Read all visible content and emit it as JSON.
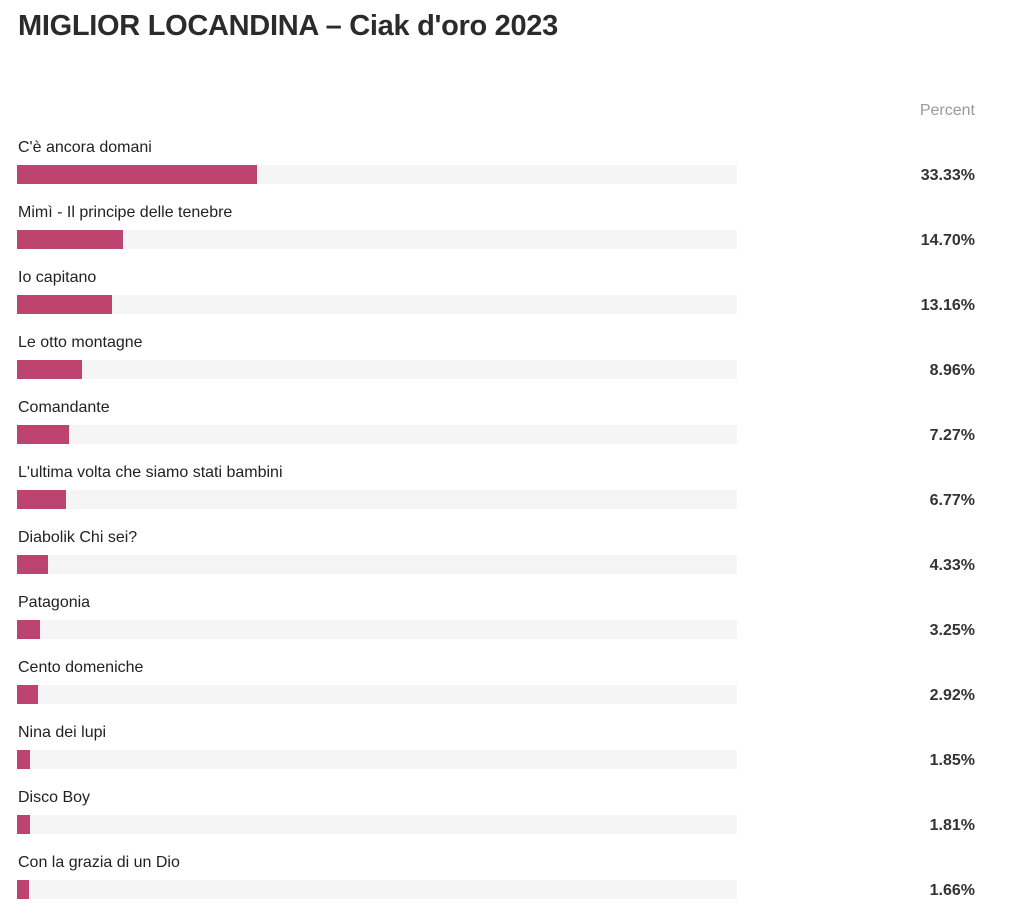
{
  "title": "MIGLIOR LOCANDINA – Ciak d'oro 2023",
  "column_header": "Percent",
  "colors": {
    "bar": "#be4470",
    "track": "#f5f5f5"
  },
  "chart_data": {
    "type": "bar",
    "orientation": "horizontal",
    "title": "MIGLIOR LOCANDINA – Ciak d'oro 2023",
    "xlabel": "",
    "ylabel": "",
    "value_column_label": "Percent",
    "xlim": [
      0,
      100
    ],
    "grid": false,
    "categories": [
      "C'è ancora domani",
      "Mimì - Il principe delle tenebre",
      "Io capitano",
      "Le otto montagne",
      "Comandante",
      "L'ultima volta che siamo stati bambini",
      "Diabolik Chi sei?",
      "Patagonia",
      "Cento domeniche",
      "Nina dei lupi",
      "Disco Boy",
      "Con la grazia di un Dio"
    ],
    "values": [
      33.33,
      14.7,
      13.16,
      8.96,
      7.27,
      6.77,
      4.33,
      3.25,
      2.92,
      1.85,
      1.81,
      1.66
    ],
    "value_labels": [
      "33.33%",
      "14.70%",
      "13.16%",
      "8.96%",
      "7.27%",
      "6.77%",
      "4.33%",
      "3.25%",
      "2.92%",
      "1.85%",
      "1.81%",
      "1.66%"
    ]
  }
}
